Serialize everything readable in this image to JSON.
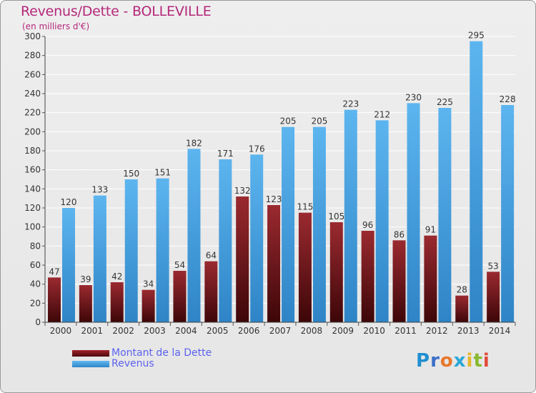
{
  "chart_data": {
    "type": "bar",
    "title": "Revenus/Dette - BOLLEVILLE",
    "subtitle": "(en milliers d'€)",
    "categories": [
      "2000",
      "2001",
      "2002",
      "2003",
      "2004",
      "2005",
      "2006",
      "2007",
      "2008",
      "2009",
      "2010",
      "2011",
      "2012",
      "2013",
      "2014"
    ],
    "series": [
      {
        "name": "Montant de la Dette",
        "values": [
          47,
          39,
          42,
          34,
          54,
          64,
          132,
          123,
          115,
          105,
          96,
          86,
          91,
          28,
          53
        ],
        "color": "#7a1518"
      },
      {
        "name": "Revenus",
        "values": [
          120,
          133,
          150,
          151,
          182,
          171,
          176,
          205,
          205,
          223,
          212,
          230,
          225,
          295,
          228
        ],
        "color": "#4aa3e3"
      }
    ],
    "ylim": [
      0,
      300
    ],
    "yticks": [
      0,
      20,
      40,
      60,
      80,
      100,
      120,
      140,
      160,
      180,
      200,
      220,
      240,
      260,
      280,
      300
    ],
    "grid": true,
    "legend": "bottom-left"
  },
  "legend": {
    "debt_label": "Montant de la Dette",
    "revenue_label": "Revenus"
  },
  "logo": {
    "letters": [
      "P",
      "r",
      "o",
      "x",
      "i",
      "t",
      "i"
    ],
    "colors": [
      "#1f8fd0",
      "#3a6fc8",
      "#e8772b",
      "#2aa7d6",
      "#e6b72b",
      "#88b92e",
      "#e24a3a"
    ]
  }
}
